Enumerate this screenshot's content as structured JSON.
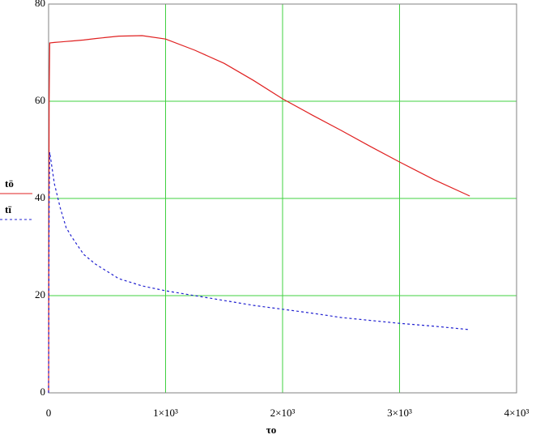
{
  "chart_data": {
    "type": "line",
    "x_label": "τo",
    "x": [
      0,
      5,
      10,
      50,
      100,
      150,
      200,
      300,
      400,
      600,
      800,
      1000,
      1250,
      1500,
      1750,
      2000,
      2250,
      2500,
      2750,
      3000,
      3300,
      3600
    ],
    "series": [
      {
        "name": "tö",
        "color": "#e02020",
        "dash": false,
        "values": [
          0,
          60,
          72,
          72.1,
          72.2,
          72.3,
          72.4,
          72.6,
          72.9,
          73.4,
          73.5,
          72.8,
          70.5,
          67.8,
          64.3,
          60.5,
          57.2,
          54,
          50.7,
          47.5,
          43.8,
          40.5
        ]
      },
      {
        "name": "tï",
        "color": "#2020d0",
        "dash": true,
        "values": [
          0,
          40,
          49.5,
          43,
          38,
          34,
          32,
          28.5,
          26.5,
          23.5,
          22,
          21,
          20,
          19,
          18,
          17.2,
          16.4,
          15.5,
          14.9,
          14.3,
          13.7,
          13
        ]
      }
    ],
    "xlim": [
      0,
      4000
    ],
    "xticks": [
      0,
      {
        "value": 1000,
        "label": "1×10³"
      },
      {
        "value": 2000,
        "label": "2×10³"
      },
      {
        "value": 3000,
        "label": "3×10³"
      },
      {
        "value": 4000,
        "label": "4×10³"
      }
    ],
    "ylim": [
      0,
      80
    ],
    "yticks": [
      0,
      20,
      40,
      60,
      80
    ],
    "grid": true,
    "grid_color": "#40d040"
  }
}
